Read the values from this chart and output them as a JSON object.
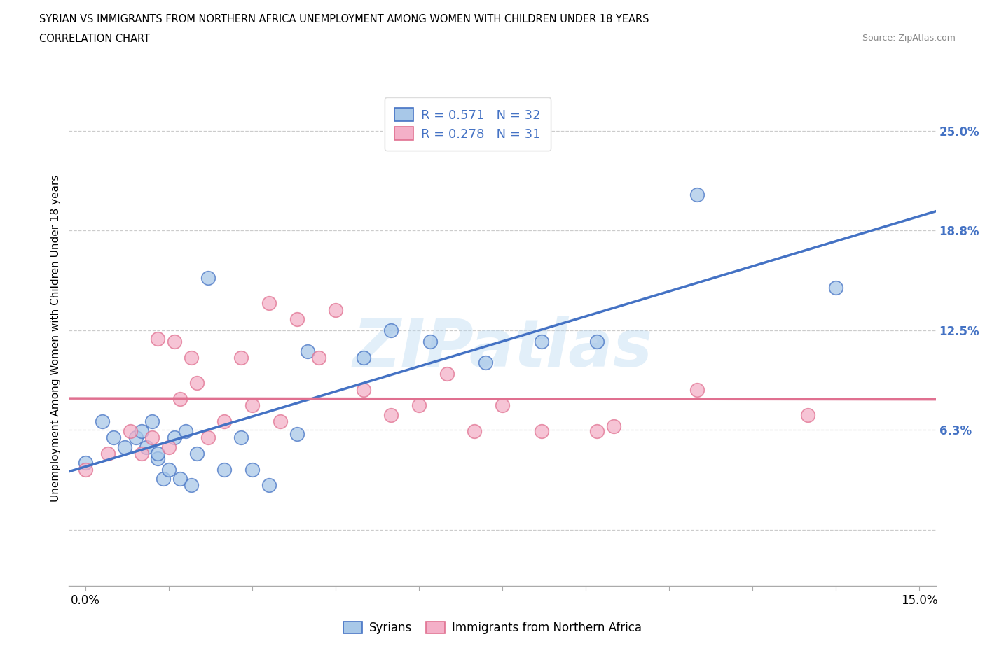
{
  "title_line1": "SYRIAN VS IMMIGRANTS FROM NORTHERN AFRICA UNEMPLOYMENT AMONG WOMEN WITH CHILDREN UNDER 18 YEARS",
  "title_line2": "CORRELATION CHART",
  "source": "Source: ZipAtlas.com",
  "ylabel": "Unemployment Among Women with Children Under 18 years",
  "xlim": [
    -0.003,
    0.153
  ],
  "ylim": [
    -0.035,
    0.275
  ],
  "blue_color": "#a8c8e8",
  "pink_color": "#f4b0c8",
  "blue_line_color": "#4472c4",
  "pink_line_color": "#e07090",
  "R_blue": 0.571,
  "N_blue": 32,
  "R_pink": 0.278,
  "N_pink": 31,
  "legend_label_blue": "Syrians",
  "legend_label_pink": "Immigrants from Northern Africa",
  "grid_color": "#cccccc",
  "ytick_vals": [
    0.0,
    0.063,
    0.125,
    0.188,
    0.25
  ],
  "ytick_labels_right": [
    "",
    "6.3%",
    "12.5%",
    "18.8%",
    "25.0%"
  ],
  "xtick_positions": [
    0.0,
    0.015,
    0.03,
    0.045,
    0.06,
    0.075,
    0.09,
    0.105,
    0.12,
    0.135,
    0.15
  ],
  "xtick_labels_left": "0.0%",
  "xtick_labels_right": "15.0%",
  "blue_scatter_x": [
    0.0,
    0.003,
    0.005,
    0.007,
    0.009,
    0.01,
    0.011,
    0.012,
    0.013,
    0.013,
    0.014,
    0.015,
    0.016,
    0.017,
    0.018,
    0.019,
    0.02,
    0.022,
    0.025,
    0.028,
    0.03,
    0.033,
    0.038,
    0.04,
    0.05,
    0.055,
    0.062,
    0.072,
    0.082,
    0.092,
    0.11,
    0.135
  ],
  "blue_scatter_y": [
    0.042,
    0.068,
    0.058,
    0.052,
    0.058,
    0.062,
    0.052,
    0.068,
    0.045,
    0.048,
    0.032,
    0.038,
    0.058,
    0.032,
    0.062,
    0.028,
    0.048,
    0.158,
    0.038,
    0.058,
    0.038,
    0.028,
    0.06,
    0.112,
    0.108,
    0.125,
    0.118,
    0.105,
    0.118,
    0.118,
    0.21,
    0.152
  ],
  "pink_scatter_x": [
    0.0,
    0.004,
    0.008,
    0.01,
    0.012,
    0.013,
    0.015,
    0.016,
    0.017,
    0.019,
    0.02,
    0.022,
    0.025,
    0.028,
    0.03,
    0.033,
    0.035,
    0.038,
    0.042,
    0.045,
    0.05,
    0.055,
    0.06,
    0.065,
    0.07,
    0.075,
    0.082,
    0.092,
    0.095,
    0.11,
    0.13
  ],
  "pink_scatter_y": [
    0.038,
    0.048,
    0.062,
    0.048,
    0.058,
    0.12,
    0.052,
    0.118,
    0.082,
    0.108,
    0.092,
    0.058,
    0.068,
    0.108,
    0.078,
    0.142,
    0.068,
    0.132,
    0.108,
    0.138,
    0.088,
    0.072,
    0.078,
    0.098,
    0.062,
    0.078,
    0.062,
    0.062,
    0.065,
    0.088,
    0.072
  ]
}
